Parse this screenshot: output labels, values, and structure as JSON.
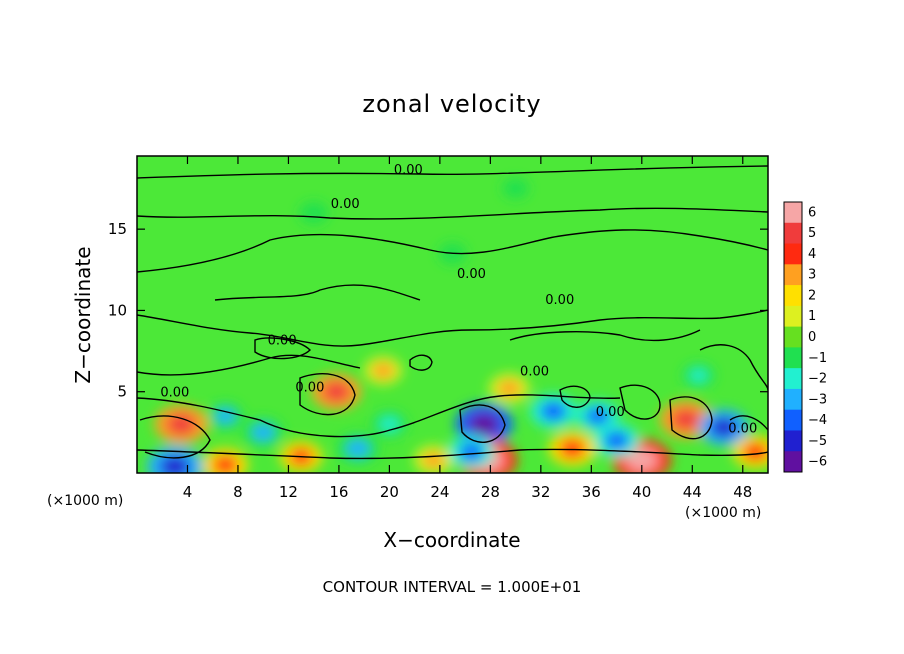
{
  "chart_data": {
    "type": "heatmap",
    "title": "zonal velocity",
    "xlabel": "X−coordinate",
    "ylabel": "Z−coordinate",
    "x_unit_label": "(×1000 m)",
    "y_unit_label": "(×1000 m)",
    "xlim": [
      0,
      50
    ],
    "ylim": [
      0,
      19.5
    ],
    "x_ticks": [
      4,
      8,
      12,
      16,
      20,
      24,
      28,
      32,
      36,
      40,
      44,
      48
    ],
    "y_ticks": [
      5,
      10,
      15
    ],
    "colorbar": {
      "ticks": [
        6,
        5,
        4,
        3,
        2,
        1,
        0,
        -1,
        -2,
        -3,
        -4,
        -5,
        -6
      ],
      "colors": [
        "#f6a6a6",
        "#f03c3c",
        "#ff2a10",
        "#ffa020",
        "#ffe000",
        "#ddf020",
        "#66e020",
        "#20e050",
        "#22f0d0",
        "#20b0ff",
        "#1060ff",
        "#2020d0",
        "#6010a0"
      ],
      "range": [
        -6,
        6
      ]
    },
    "contour_labels": [
      {
        "text": "0.00",
        "x": 21.5,
        "z": 18.4
      },
      {
        "text": "0.00",
        "x": 16.5,
        "z": 16.3
      },
      {
        "text": "0.00",
        "x": 26.5,
        "z": 12.0
      },
      {
        "text": "0.00",
        "x": 33.5,
        "z": 10.4
      },
      {
        "text": "0.00",
        "x": 11.5,
        "z": 7.9
      },
      {
        "text": "0.00",
        "x": 3.0,
        "z": 4.7
      },
      {
        "text": "0.00",
        "x": 13.7,
        "z": 5.0
      },
      {
        "text": "0.00",
        "x": 31.5,
        "z": 6.0
      },
      {
        "text": "0.00",
        "x": 37.5,
        "z": 3.5
      },
      {
        "text": "0.00",
        "x": 48.0,
        "z": 2.5
      }
    ],
    "features": [
      {
        "x": 3.5,
        "z": 3.0,
        "value": 5.2
      },
      {
        "x": 15.8,
        "z": 5.0,
        "value": 4.6
      },
      {
        "x": 19.5,
        "z": 6.3,
        "value": 2.8
      },
      {
        "x": 27.5,
        "z": 3.0,
        "value": -5.8
      },
      {
        "x": 27.8,
        "z": 0.8,
        "value": 6.0
      },
      {
        "x": 29.5,
        "z": 5.2,
        "value": 3.2
      },
      {
        "x": 34.5,
        "z": 1.5,
        "value": 4.3
      },
      {
        "x": 40.0,
        "z": 0.8,
        "value": 6.0
      },
      {
        "x": 43.5,
        "z": 3.3,
        "value": 5.0
      },
      {
        "x": 7.0,
        "z": 0.5,
        "value": 4.0
      },
      {
        "x": 13.0,
        "z": 1.0,
        "value": 3.5
      },
      {
        "x": 23.5,
        "z": 0.8,
        "value": 3.0
      },
      {
        "x": 49.0,
        "z": 1.3,
        "value": 4.0
      },
      {
        "x": 38.0,
        "z": 2.0,
        "value": -4.0
      },
      {
        "x": 33.0,
        "z": 3.8,
        "value": -4.2
      },
      {
        "x": 36.5,
        "z": 3.5,
        "value": -3.6
      },
      {
        "x": 46.5,
        "z": 2.8,
        "value": -4.6
      },
      {
        "x": 3.0,
        "z": 0.4,
        "value": -5.5
      },
      {
        "x": 7.0,
        "z": 3.5,
        "value": -2.6
      },
      {
        "x": 10.0,
        "z": 2.5,
        "value": -3.2
      },
      {
        "x": 17.5,
        "z": 1.5,
        "value": -3.5
      },
      {
        "x": 20.0,
        "z": 3.0,
        "value": -2.5
      },
      {
        "x": 26.5,
        "z": 1.3,
        "value": -4.0
      },
      {
        "x": 44.5,
        "z": 6.0,
        "value": -2.0
      },
      {
        "x": 25.0,
        "z": 13.5,
        "value": -1.2
      },
      {
        "x": 14.0,
        "z": 16.0,
        "value": -1.4
      },
      {
        "x": 30.0,
        "z": 17.5,
        "value": -1.0
      }
    ]
  },
  "footer": {
    "contour_interval": "CONTOUR INTERVAL = 1.000E+01"
  }
}
